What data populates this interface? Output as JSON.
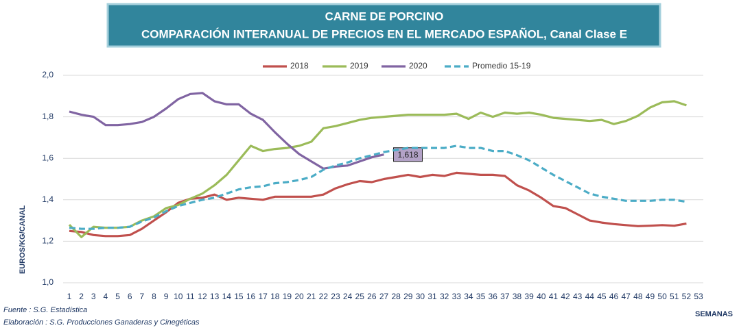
{
  "chart_data": {
    "type": "line",
    "title": [
      "CARNE DE PORCINO",
      "COMPARACIÓN INTERANUAL DE PRECIOS EN EL MERCADO ESPAÑOL, Canal Clase E"
    ],
    "y_label": "EUROS/KG/CANAL",
    "x_label": "SEMANAS",
    "notes": [
      "Fuente :  S.G. Estadística",
      "Elaboración : S.G. Producciones Ganaderas y Cinegéticas"
    ],
    "categories": [
      1,
      2,
      3,
      4,
      5,
      6,
      7,
      8,
      9,
      10,
      11,
      12,
      13,
      14,
      15,
      16,
      17,
      18,
      19,
      20,
      21,
      22,
      23,
      24,
      25,
      26,
      27,
      28,
      29,
      30,
      31,
      32,
      33,
      34,
      35,
      36,
      37,
      38,
      39,
      40,
      41,
      42,
      43,
      44,
      45,
      46,
      47,
      48,
      49,
      50,
      51,
      52,
      53
    ],
    "ylim": [
      1.0,
      2.0
    ],
    "yticks": [
      {
        "value": 1.0,
        "label": "1,0"
      },
      {
        "value": 1.2,
        "label": "1,2"
      },
      {
        "value": 1.4,
        "label": "1,4"
      },
      {
        "value": 1.6,
        "label": "1,6"
      },
      {
        "value": 1.8,
        "label": "1,8"
      },
      {
        "value": 2.0,
        "label": "2,0"
      }
    ],
    "grid": true,
    "legend": "top",
    "series": [
      {
        "name": "2018",
        "color": "#c0504d",
        "values": [
          1.25,
          1.245,
          1.23,
          1.225,
          1.225,
          1.23,
          1.26,
          1.3,
          1.34,
          1.385,
          1.405,
          1.41,
          1.425,
          1.4,
          1.41,
          1.405,
          1.4,
          1.415,
          1.415,
          1.415,
          1.415,
          1.425,
          1.455,
          1.475,
          1.49,
          1.485,
          1.5,
          1.51,
          1.52,
          1.51,
          1.52,
          1.515,
          1.53,
          1.525,
          1.52,
          1.52,
          1.515,
          1.47,
          1.445,
          1.41,
          1.37,
          1.36,
          1.33,
          1.3,
          1.29,
          1.283,
          1.278,
          1.273,
          1.275,
          1.278,
          1.275,
          1.285,
          null
        ]
      },
      {
        "name": "2019",
        "color": "#9bbb59",
        "values": [
          1.28,
          1.22,
          1.27,
          1.265,
          1.265,
          1.27,
          1.3,
          1.32,
          1.36,
          1.375,
          1.405,
          1.43,
          1.47,
          1.52,
          1.59,
          1.66,
          1.635,
          1.645,
          1.65,
          1.66,
          1.68,
          1.745,
          1.755,
          1.77,
          1.785,
          1.795,
          1.8,
          1.805,
          1.81,
          1.81,
          1.81,
          1.81,
          1.815,
          1.79,
          1.82,
          1.8,
          1.82,
          1.815,
          1.82,
          1.81,
          1.795,
          1.79,
          1.785,
          1.78,
          1.785,
          1.765,
          1.78,
          1.805,
          1.845,
          1.87,
          1.875,
          1.855,
          null
        ]
      },
      {
        "name": "2020",
        "color": "#8064a2",
        "values": [
          1.825,
          1.81,
          1.8,
          1.76,
          1.76,
          1.765,
          1.775,
          1.8,
          1.84,
          1.885,
          1.91,
          1.915,
          1.875,
          1.86,
          1.86,
          1.815,
          1.785,
          1.725,
          1.67,
          1.62,
          1.585,
          1.55,
          1.56,
          1.565,
          1.585,
          1.605,
          1.618,
          null,
          null,
          null,
          null,
          null,
          null,
          null,
          null,
          null,
          null,
          null,
          null,
          null,
          null,
          null,
          null,
          null,
          null,
          null,
          null,
          null,
          null,
          null,
          null,
          null,
          null
        ],
        "value_labels": [
          null,
          null,
          null,
          null,
          null,
          null,
          null,
          null,
          null,
          null,
          null,
          null,
          null,
          null,
          null,
          null,
          null,
          null,
          null,
          null,
          null,
          null,
          null,
          null,
          null,
          null,
          "1,618",
          null,
          null,
          null,
          null,
          null,
          null,
          null,
          null,
          null,
          null,
          null,
          null,
          null,
          null,
          null,
          null,
          null,
          null,
          null,
          null,
          null,
          null,
          null,
          null,
          null,
          null
        ]
      },
      {
        "name": "Promedio 15-19",
        "color": "#4bacc6",
        "dashed": true,
        "values": [
          1.265,
          1.26,
          1.26,
          1.265,
          1.265,
          1.27,
          1.295,
          1.315,
          1.345,
          1.37,
          1.385,
          1.4,
          1.41,
          1.43,
          1.45,
          1.46,
          1.465,
          1.48,
          1.485,
          1.495,
          1.51,
          1.545,
          1.565,
          1.58,
          1.6,
          1.615,
          1.63,
          1.64,
          1.65,
          1.65,
          1.65,
          1.65,
          1.66,
          1.65,
          1.65,
          1.635,
          1.635,
          1.615,
          1.59,
          1.555,
          1.52,
          1.49,
          1.46,
          1.43,
          1.415,
          1.405,
          1.395,
          1.395,
          1.395,
          1.4,
          1.4,
          1.39,
          null
        ]
      }
    ]
  }
}
